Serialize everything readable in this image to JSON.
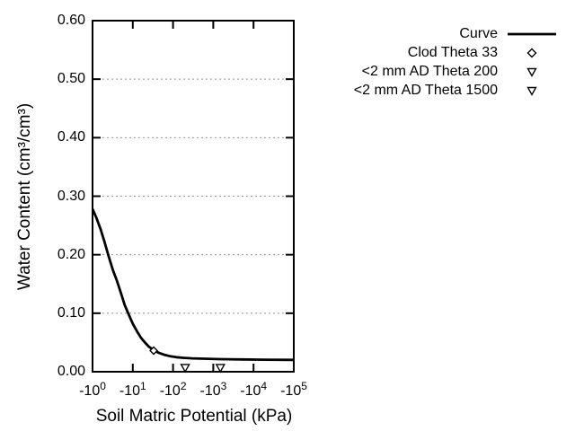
{
  "figure": {
    "background": "#ffffff",
    "axis_color": "#000000",
    "grid_color": "#949494",
    "curve_color": "#000000",
    "marker_fill": "#ffffff"
  },
  "axes": {
    "x": {
      "label": "Soil Matric Potential (kPa)",
      "scale": "negative-log10",
      "tick_prefix": "-10",
      "tick_exponents": [
        0,
        1,
        2,
        3,
        4,
        5
      ]
    },
    "y": {
      "label": "Water Content (cm³/cm³)",
      "tick_labels": [
        "0.00",
        "0.10",
        "0.20",
        "0.30",
        "0.40",
        "0.50",
        "0.60"
      ],
      "tick_values": [
        0.0,
        0.1,
        0.2,
        0.3,
        0.4,
        0.5,
        0.6
      ]
    }
  },
  "legend": {
    "items": [
      {
        "label": "Curve",
        "marker": "line"
      },
      {
        "label": "Clod Theta 33",
        "marker": "diamond"
      },
      {
        "label": "<2 mm AD Theta 200",
        "marker": "triangle-down"
      },
      {
        "label": "<2 mm AD Theta 1500",
        "marker": "triangle-down"
      }
    ]
  },
  "chart_data": {
    "type": "line",
    "title": "",
    "xlabel": "Soil Matric Potential (kPa)",
    "ylabel": "Water Content (cm³/cm³)",
    "x_scale": "log10 of negative kPa magnitude",
    "xlim_decades": [
      0,
      5
    ],
    "ylim": [
      0,
      0.6
    ],
    "grid": "dotted horizontal lines at 0.10 through 0.50",
    "legend_position": "outside top-right",
    "series": [
      {
        "name": "Curve",
        "type": "line",
        "points": [
          [
            1,
            0.278
          ],
          [
            1.25,
            0.263
          ],
          [
            1.6,
            0.243
          ],
          [
            2.0,
            0.221
          ],
          [
            2.5,
            0.198
          ],
          [
            3.2,
            0.174
          ],
          [
            4.0,
            0.156
          ],
          [
            5.0,
            0.136
          ],
          [
            6.3,
            0.114
          ],
          [
            8.0,
            0.097
          ],
          [
            10,
            0.082
          ],
          [
            13,
            0.068
          ],
          [
            16,
            0.058
          ],
          [
            20,
            0.05
          ],
          [
            25,
            0.043
          ],
          [
            33,
            0.037
          ],
          [
            45,
            0.032
          ],
          [
            60,
            0.029
          ],
          [
            85,
            0.0265
          ],
          [
            120,
            0.0248
          ],
          [
            180,
            0.0238
          ],
          [
            300,
            0.0228
          ],
          [
            600,
            0.0222
          ],
          [
            1500,
            0.0215
          ],
          [
            5000,
            0.021
          ],
          [
            20000,
            0.0205
          ],
          [
            100000,
            0.0202
          ]
        ]
      },
      {
        "name": "Clod Theta 33",
        "type": "scatter",
        "marker": "diamond",
        "points": [
          [
            33,
            0.036
          ]
        ]
      },
      {
        "name": "<2 mm AD Theta 200",
        "type": "scatter",
        "marker": "triangle-down",
        "points": [
          [
            200,
            0.007
          ]
        ]
      },
      {
        "name": "<2 mm AD Theta 1500",
        "type": "scatter",
        "marker": "triangle-down",
        "points": [
          [
            1500,
            0.007
          ]
        ]
      }
    ]
  }
}
